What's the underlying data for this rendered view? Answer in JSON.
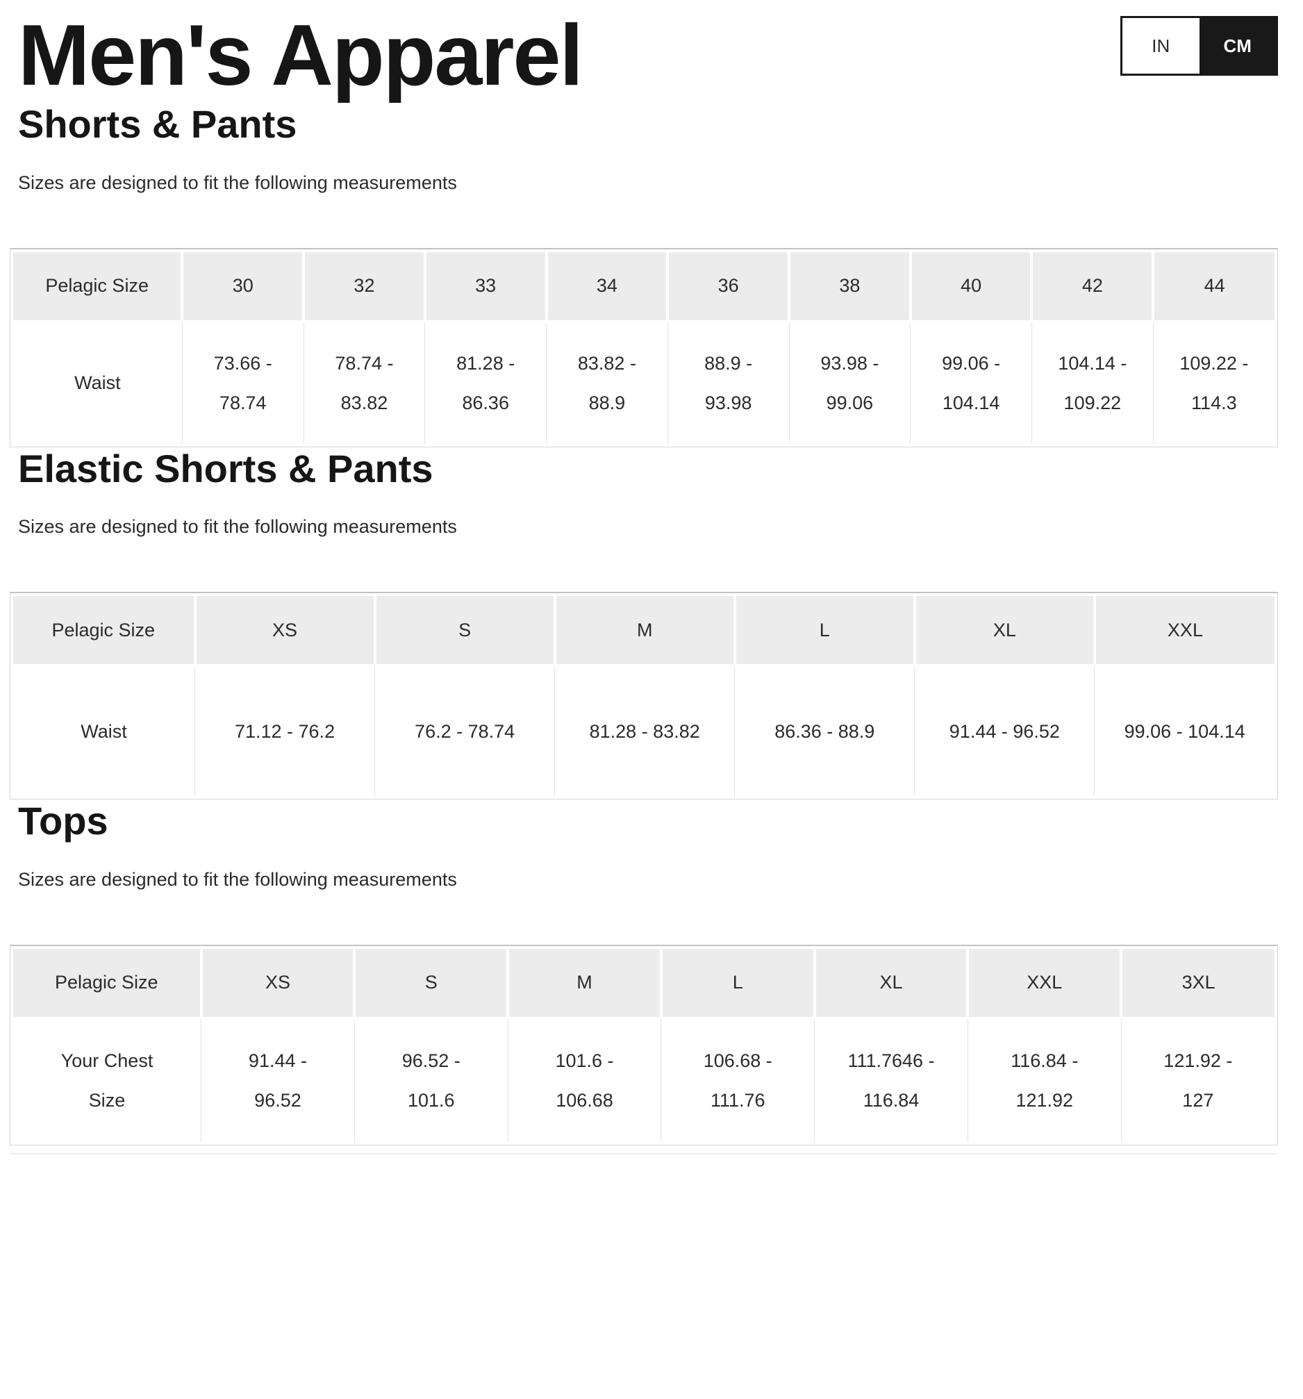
{
  "page": {
    "title": "Men's Apparel",
    "unit_toggle": {
      "in_label": "IN",
      "cm_label": "CM",
      "selected": "CM"
    }
  },
  "sections": [
    {
      "heading": "Shorts & Pants",
      "subtitle": "Sizes are designed to fit the following measurements",
      "table": {
        "corner_label": "Pelagic Size",
        "size_headers": [
          "30",
          "32",
          "33",
          "34",
          "36",
          "38",
          "40",
          "42",
          "44"
        ],
        "rows": [
          {
            "label": "Waist",
            "values": [
              "73.66 -\n78.74",
              "78.74 -\n83.82",
              "81.28 -\n86.36",
              "83.82 -\n88.9",
              "88.9 -\n93.98",
              "93.98 -\n99.06",
              "99.06 -\n104.14",
              "104.14 -\n109.22",
              "109.22 -\n114.3"
            ]
          }
        ]
      }
    },
    {
      "heading": "Elastic Shorts & Pants",
      "subtitle": "Sizes are designed to fit the following measurements",
      "table": {
        "corner_label": "Pelagic Size",
        "size_headers": [
          "XS",
          "S",
          "M",
          "L",
          "XL",
          "XXL"
        ],
        "rows": [
          {
            "label": "Waist",
            "values": [
              "71.12 - 76.2",
              "76.2 - 78.74",
              "81.28 - 83.82",
              "86.36 - 88.9",
              "91.44 - 96.52",
              "99.06 - 104.14"
            ]
          }
        ]
      }
    },
    {
      "heading": "Tops",
      "subtitle": "Sizes are designed to fit the following measurements",
      "table": {
        "corner_label": "Pelagic Size",
        "size_headers": [
          "XS",
          "S",
          "M",
          "L",
          "XL",
          "XXL",
          "3XL"
        ],
        "rows": [
          {
            "label": "Your Chest\nSize",
            "values": [
              "91.44 -\n96.52",
              "96.52 -\n101.6",
              "101.6 -\n106.68",
              "106.68 -\n111.76",
              "111.7646 -\n116.84",
              "116.84 -\n121.92",
              "121.92 -\n127"
            ]
          }
        ]
      }
    }
  ],
  "colors": {
    "header_bg": "#ececec",
    "table_border": "#d5d5d5",
    "table_border_top": "#c3c3c3",
    "cell_divider": "#e2e2e2",
    "text": "#232323",
    "toggle_dark": "#191919"
  }
}
